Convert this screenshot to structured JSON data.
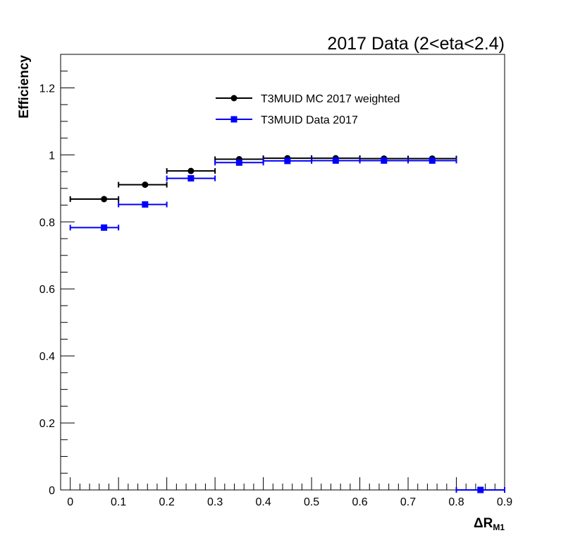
{
  "chart_data": {
    "type": "scatter",
    "title": "2017 Data (2<eta<2.4)",
    "ylabel": "Efficiency",
    "xlabel_main": "ΔR",
    "xlabel_sub": "M1",
    "xlim": [
      -0.02,
      0.9
    ],
    "ylim": [
      0,
      1.3
    ],
    "x_ticks": [
      "0",
      "0.1",
      "0.2",
      "0.3",
      "0.4",
      "0.5",
      "0.6",
      "0.7",
      "0.8",
      "0.9"
    ],
    "y_ticks": [
      "0",
      "0.2",
      "0.4",
      "0.6",
      "0.8",
      "1",
      "1.2"
    ],
    "legend_position": "top-center",
    "series": [
      {
        "name": "T3MUID MC 2017 weighted",
        "color": "#000000",
        "marker": "circle",
        "points": [
          {
            "x": 0.07,
            "xlo": 0.0,
            "xhi": 0.1,
            "y": 0.868
          },
          {
            "x": 0.155,
            "xlo": 0.1,
            "xhi": 0.2,
            "y": 0.911
          },
          {
            "x": 0.25,
            "xlo": 0.2,
            "xhi": 0.3,
            "y": 0.952
          },
          {
            "x": 0.35,
            "xlo": 0.3,
            "xhi": 0.4,
            "y": 0.987
          },
          {
            "x": 0.45,
            "xlo": 0.4,
            "xhi": 0.5,
            "y": 0.99
          },
          {
            "x": 0.55,
            "xlo": 0.5,
            "xhi": 0.6,
            "y": 0.99
          },
          {
            "x": 0.65,
            "xlo": 0.6,
            "xhi": 0.7,
            "y": 0.989
          },
          {
            "x": 0.75,
            "xlo": 0.7,
            "xhi": 0.8,
            "y": 0.989
          }
        ]
      },
      {
        "name": "T3MUID Data 2017",
        "color": "#0000ff",
        "marker": "square",
        "points": [
          {
            "x": 0.07,
            "xlo": 0.0,
            "xhi": 0.1,
            "y": 0.783
          },
          {
            "x": 0.155,
            "xlo": 0.1,
            "xhi": 0.2,
            "y": 0.852
          },
          {
            "x": 0.25,
            "xlo": 0.2,
            "xhi": 0.3,
            "y": 0.93
          },
          {
            "x": 0.35,
            "xlo": 0.3,
            "xhi": 0.4,
            "y": 0.977
          },
          {
            "x": 0.45,
            "xlo": 0.4,
            "xhi": 0.5,
            "y": 0.982
          },
          {
            "x": 0.55,
            "xlo": 0.5,
            "xhi": 0.6,
            "y": 0.983
          },
          {
            "x": 0.65,
            "xlo": 0.6,
            "xhi": 0.7,
            "y": 0.983
          },
          {
            "x": 0.75,
            "xlo": 0.7,
            "xhi": 0.8,
            "y": 0.983
          },
          {
            "x": 0.85,
            "xlo": 0.8,
            "xhi": 0.9,
            "y": 0.0
          }
        ]
      }
    ]
  }
}
